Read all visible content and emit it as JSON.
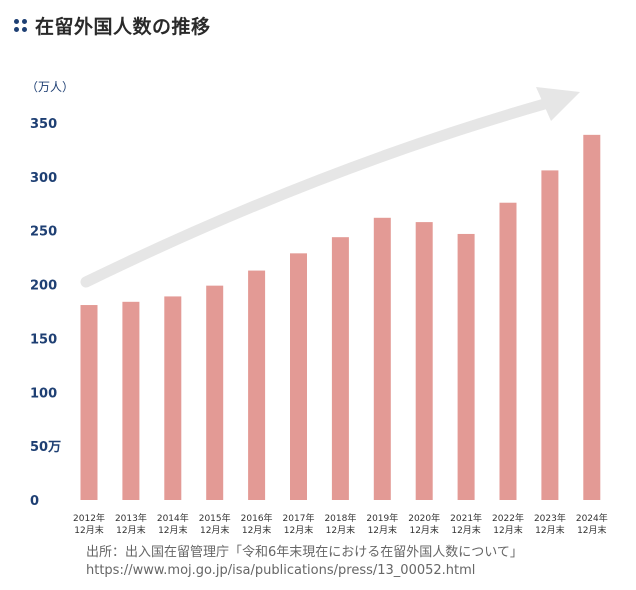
{
  "title": "在留外国人数の推移",
  "colors": {
    "bar": "#e39a95",
    "arrow": "#e6e6e6",
    "axis_text": "#1e3f73",
    "title_marker": "#1e3f73"
  },
  "chart_data": {
    "type": "bar",
    "title": "在留外国人数の推移",
    "unit_label": "（万人）",
    "ylim": [
      0,
      350
    ],
    "y_ticks": [
      "0",
      "50万",
      "100",
      "150",
      "200",
      "250",
      "300",
      "350"
    ],
    "y_tick_values": [
      0,
      50,
      100,
      150,
      200,
      250,
      300,
      350
    ],
    "categories": [
      {
        "year": "2012年",
        "sub": "12月末"
      },
      {
        "year": "2013年",
        "sub": "12月末"
      },
      {
        "year": "2014年",
        "sub": "12月末"
      },
      {
        "year": "2015年",
        "sub": "12月末"
      },
      {
        "year": "2016年",
        "sub": "12月末"
      },
      {
        "year": "2017年",
        "sub": "12月末"
      },
      {
        "year": "2018年",
        "sub": "12月末"
      },
      {
        "year": "2019年",
        "sub": "12月末"
      },
      {
        "year": "2020年",
        "sub": "12月末"
      },
      {
        "year": "2021年",
        "sub": "12月末"
      },
      {
        "year": "2022年",
        "sub": "12月末"
      },
      {
        "year": "2023年",
        "sub": "12月末"
      },
      {
        "year": "2024年",
        "sub": "12月末"
      }
    ],
    "values": [
      181,
      184,
      189,
      199,
      213,
      229,
      244,
      262,
      258,
      247,
      276,
      306,
      339
    ],
    "grid": false,
    "trend_arrow": true
  },
  "source": {
    "line1": "出所：出入国在留管理庁「令和6年末現在における在留外国人数について」",
    "line2": "https://www.moj.go.jp/isa/publications/press/13_00052.html"
  }
}
